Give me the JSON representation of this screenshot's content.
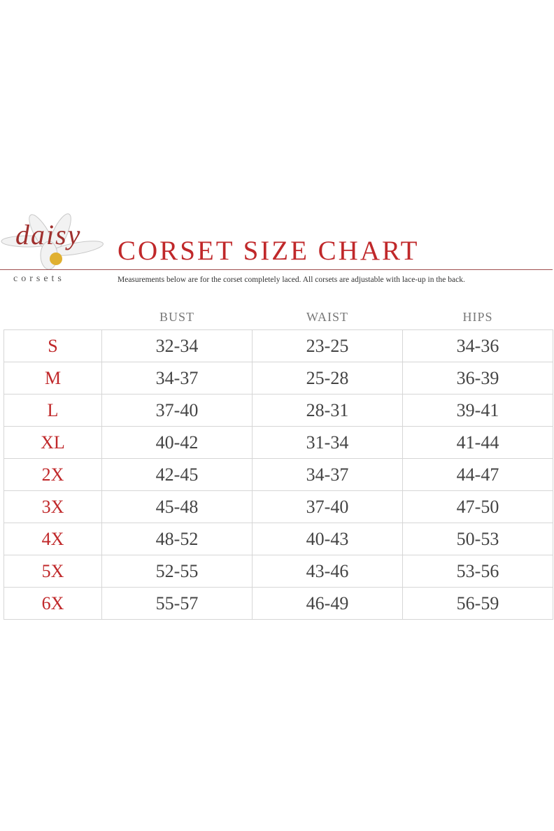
{
  "header": {
    "logo_script": "daisy",
    "logo_sub": "corsets",
    "title": "CORSET SIZE CHART",
    "subtitle": "Measurements below are for the corset completely laced.  All corsets are adjustable with lace-up in the back."
  },
  "table": {
    "columns": [
      "BUST",
      "WAIST",
      "HIPS"
    ],
    "rows": [
      [
        "S",
        "32-34",
        "23-25",
        "34-36"
      ],
      [
        "M",
        "34-37",
        "25-28",
        "36-39"
      ],
      [
        "L",
        "37-40",
        "28-31",
        "39-41"
      ],
      [
        "XL",
        "40-42",
        "31-34",
        "41-44"
      ],
      [
        "2X",
        "42-45",
        "34-37",
        "44-47"
      ],
      [
        "3X",
        "45-48",
        "37-40",
        "47-50"
      ],
      [
        "4X",
        "48-52",
        "40-43",
        "50-53"
      ],
      [
        "5X",
        "52-55",
        "43-46",
        "53-56"
      ],
      [
        "6X",
        "55-57",
        "46-49",
        "56-59"
      ]
    ]
  }
}
